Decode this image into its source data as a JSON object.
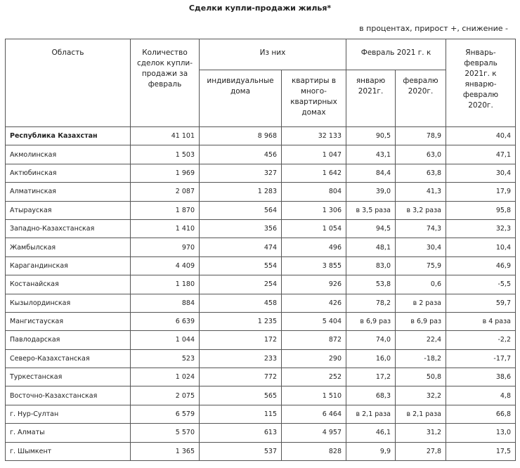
{
  "title": "Сделки купли-продажи жилья*",
  "subtitle": "в процентах, прирост +, снижение -",
  "table": {
    "headers": {
      "region": "Область",
      "count": "Количество сделок купли-продажи за февраль",
      "of_which": "Из них",
      "individual": "индивидуальные дома",
      "apartments": "квартиры в много-квартирных домах",
      "feb2021_to": "Февраль 2021 г. к",
      "jan2021": "январю 2021г.",
      "feb2020": "февралю 2020г.",
      "janfeb": "Январь-февраль 2021г. к январю-февралю 2020г."
    },
    "rows": [
      [
        "Республика Казахстан",
        "41 101",
        "8 968",
        "32 133",
        "90,5",
        "78,9",
        "40,4"
      ],
      [
        "Акмолинская",
        "1 503",
        "456",
        "1 047",
        "43,1",
        "63,0",
        "47,1"
      ],
      [
        "Актюбинская",
        "1 969",
        "327",
        "1 642",
        "84,4",
        "63,8",
        "30,4"
      ],
      [
        "Алматинская",
        "2 087",
        "1 283",
        "804",
        "39,0",
        "41,3",
        "17,9"
      ],
      [
        "Атырауская",
        "1 870",
        "564",
        "1 306",
        "в 3,5 раза",
        "в 3,2 раза",
        "95,8"
      ],
      [
        "Западно-Казахстанская",
        "1 410",
        "356",
        "1 054",
        "94,5",
        "74,3",
        "32,3"
      ],
      [
        "Жамбылская",
        "970",
        "474",
        "496",
        "48,1",
        "30,4",
        "10,4"
      ],
      [
        "Карагандинская",
        "4 409",
        "554",
        "3 855",
        "83,0",
        "75,9",
        "46,9"
      ],
      [
        "Костанайская",
        "1 180",
        "254",
        "926",
        "53,8",
        "0,6",
        "-5,5"
      ],
      [
        "Кызылординская",
        "884",
        "458",
        "426",
        "78,2",
        "в 2 раза",
        "59,7"
      ],
      [
        "Мангистауская",
        "6 639",
        "1 235",
        "5 404",
        "в 6,9 раз",
        "в 6,9 раз",
        "в 4 раза"
      ],
      [
        "Павлодарская",
        "1 044",
        "172",
        "872",
        "74,0",
        "22,4",
        "-2,2"
      ],
      [
        "Северо-Казахстанская",
        "523",
        "233",
        "290",
        "16,0",
        "-18,2",
        "-17,7"
      ],
      [
        "Туркестанская",
        "1 024",
        "772",
        "252",
        "17,2",
        "50,8",
        "38,6"
      ],
      [
        "Восточно-Казахстанская",
        "2 075",
        "565",
        "1 510",
        "68,3",
        "32,2",
        "4,8"
      ],
      [
        "г. Нур-Султан",
        "6 579",
        "115",
        "6 464",
        "в 2,1 раза",
        "в 2,1 раза",
        "66,8"
      ],
      [
        "г. Алматы",
        "5 570",
        "613",
        "4 957",
        "46,1",
        "31,2",
        "13,0"
      ],
      [
        "г. Шымкент",
        "1 365",
        "537",
        "828",
        "9,9",
        "27,8",
        "17,5"
      ]
    ]
  }
}
